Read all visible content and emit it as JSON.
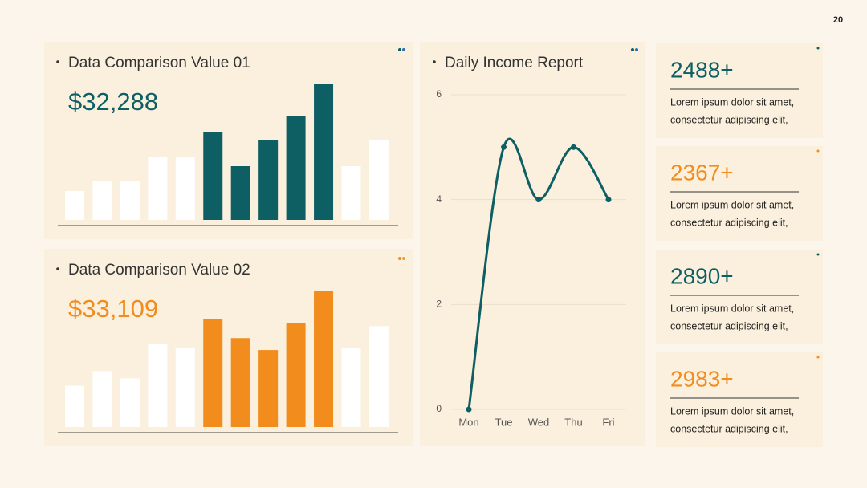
{
  "page_number": "20",
  "chart_data": [
    {
      "type": "bar",
      "title": "Data Comparison Value 01",
      "subtitle": "$32,288",
      "subtitle_color": "#0e5f64",
      "categories": [
        null,
        null,
        null,
        null,
        null,
        null,
        null,
        null,
        null,
        null,
        null,
        null
      ],
      "values": [
        36,
        49,
        49,
        78,
        78,
        109,
        67,
        99,
        129,
        169,
        67,
        99
      ],
      "colors": [
        "#ffffff",
        "#ffffff",
        "#ffffff",
        "#ffffff",
        "#ffffff",
        "#0e5f64",
        "#0e5f64",
        "#0e5f64",
        "#0e5f64",
        "#0e5f64",
        "#ffffff",
        "#ffffff"
      ]
    },
    {
      "type": "bar",
      "title": "Data Comparison Value 02",
      "subtitle": "$33,109",
      "subtitle_color": "#f28c1c",
      "categories": [
        null,
        null,
        null,
        null,
        null,
        null,
        null,
        null,
        null,
        null,
        null,
        null
      ],
      "values": [
        45,
        61,
        53,
        91,
        86,
        118,
        97,
        84,
        113,
        148,
        86,
        110
      ],
      "colors": [
        "#ffffff",
        "#ffffff",
        "#ffffff",
        "#ffffff",
        "#ffffff",
        "#f28c1c",
        "#f28c1c",
        "#f28c1c",
        "#f28c1c",
        "#f28c1c",
        "#ffffff",
        "#ffffff"
      ]
    },
    {
      "type": "line",
      "title": "Daily Income Report",
      "categories": [
        "Mon",
        "Tue",
        "Wed",
        "Thu",
        "Fri"
      ],
      "values": [
        0,
        5,
        4,
        5,
        4
      ],
      "color": "#0e5f64",
      "ylim": [
        0,
        6
      ],
      "yticks": [
        0,
        2,
        4,
        6
      ],
      "grid": true
    }
  ],
  "cards": [
    {
      "value": "2488+",
      "color": "#0e5f64",
      "lines": [
        "Lorem ipsum dolor sit amet,",
        "consectetur adipiscing elit,"
      ]
    },
    {
      "value": "2367+",
      "color": "#f28c1c",
      "lines": [
        "Lorem ipsum dolor sit amet,",
        "consectetur adipiscing elit,"
      ]
    },
    {
      "value": "2890+",
      "color": "#0e5f64",
      "lines": [
        "Lorem ipsum dolor sit amet,",
        "consectetur adipiscing elit,"
      ]
    },
    {
      "value": "2983+",
      "color": "#f28c1c",
      "lines": [
        "Lorem ipsum dolor sit amet,",
        "consectetur adipiscing elit,"
      ]
    }
  ]
}
